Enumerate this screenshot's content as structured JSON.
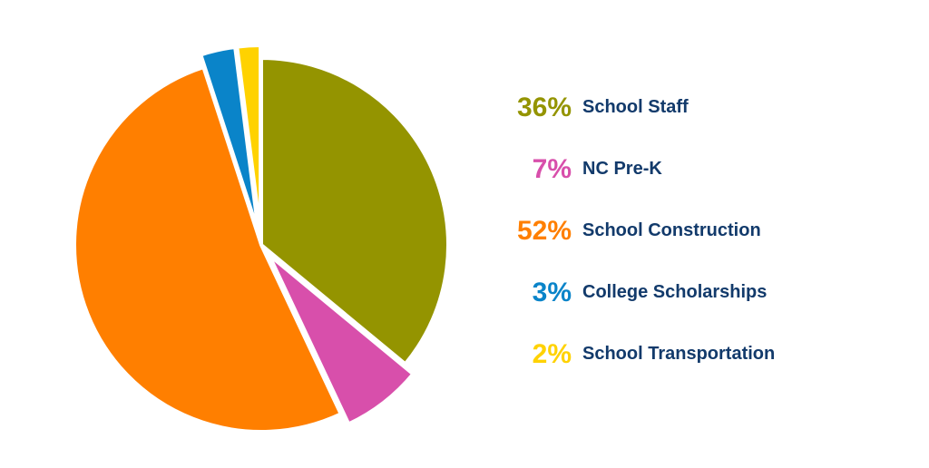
{
  "chart_data": {
    "type": "pie",
    "slices": [
      {
        "label": "School Staff",
        "percent_label": "36%",
        "value": 36,
        "color": "#949400"
      },
      {
        "label": "NC Pre-K",
        "percent_label": "7%",
        "value": 7,
        "color": "#d84fab"
      },
      {
        "label": "School Construction",
        "percent_label": "52%",
        "value": 52,
        "color": "#ff7f00"
      },
      {
        "label": "College Scholarships",
        "percent_label": "3%",
        "value": 3,
        "color": "#0a84c9"
      },
      {
        "label": "School Transportation",
        "percent_label": "2%",
        "value": 2,
        "color": "#ffd200"
      }
    ],
    "exploded": [
      "NC Pre-K",
      "College Scholarships",
      "School Transportation"
    ],
    "legend_position": "right"
  },
  "colors": {
    "label_text": "#123a6b",
    "background": "#ffffff"
  }
}
